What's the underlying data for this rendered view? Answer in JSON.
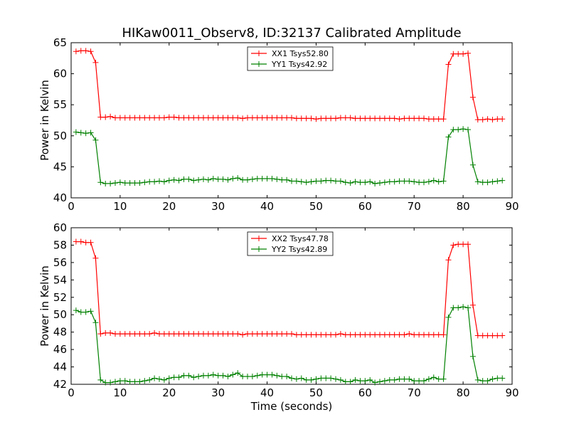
{
  "title": "HIKaw0011_Observ8, ID:32137 Calibrated Amplitude",
  "chart_data": [
    {
      "type": "line",
      "xlabel": "",
      "ylabel": "Power in Kelvin",
      "xlim": [
        0,
        90
      ],
      "ylim": [
        40,
        65
      ],
      "xticks": [
        0,
        10,
        20,
        30,
        40,
        50,
        60,
        70,
        80,
        90
      ],
      "yticks": [
        40,
        45,
        50,
        55,
        60,
        65
      ],
      "grid": false,
      "legend_position": "top-center",
      "series": [
        {
          "name": "XX1 Tsys52.80",
          "color": "#ff0000",
          "x": [
            1,
            2,
            3,
            4,
            5,
            6,
            7,
            8,
            9,
            10,
            11,
            12,
            13,
            14,
            15,
            16,
            17,
            18,
            19,
            20,
            21,
            22,
            23,
            24,
            25,
            26,
            27,
            28,
            29,
            30,
            31,
            32,
            33,
            34,
            35,
            36,
            37,
            38,
            39,
            40,
            41,
            42,
            43,
            44,
            45,
            46,
            47,
            48,
            49,
            50,
            51,
            52,
            53,
            54,
            55,
            56,
            57,
            58,
            59,
            60,
            61,
            62,
            63,
            64,
            65,
            66,
            67,
            68,
            69,
            70,
            71,
            72,
            73,
            74,
            75,
            76,
            77,
            78,
            79,
            80,
            81,
            82,
            83,
            84,
            85,
            86,
            87,
            88
          ],
          "y": [
            63.6,
            63.7,
            63.7,
            63.6,
            61.8,
            53.0,
            53.0,
            53.1,
            52.9,
            52.9,
            52.9,
            52.9,
            52.9,
            52.9,
            52.9,
            52.9,
            52.9,
            52.9,
            52.9,
            53.0,
            53.0,
            52.9,
            52.9,
            52.9,
            52.9,
            52.9,
            52.9,
            52.9,
            52.9,
            52.9,
            52.9,
            52.9,
            52.9,
            52.9,
            52.8,
            52.9,
            52.9,
            52.9,
            52.9,
            52.9,
            52.9,
            52.9,
            52.9,
            52.9,
            52.9,
            52.8,
            52.8,
            52.8,
            52.8,
            52.7,
            52.8,
            52.8,
            52.8,
            52.8,
            52.9,
            52.9,
            52.9,
            52.8,
            52.8,
            52.8,
            52.8,
            52.8,
            52.8,
            52.8,
            52.8,
            52.8,
            52.7,
            52.8,
            52.8,
            52.8,
            52.8,
            52.8,
            52.7,
            52.7,
            52.7,
            52.7,
            61.5,
            63.2,
            63.2,
            63.2,
            63.3,
            56.2,
            52.6,
            52.6,
            52.7,
            52.6,
            52.7,
            52.7
          ]
        },
        {
          "name": "YY1 Tsys42.92",
          "color": "#008000",
          "x": [
            1,
            2,
            3,
            4,
            5,
            6,
            7,
            8,
            9,
            10,
            11,
            12,
            13,
            14,
            15,
            16,
            17,
            18,
            19,
            20,
            21,
            22,
            23,
            24,
            25,
            26,
            27,
            28,
            29,
            30,
            31,
            32,
            33,
            34,
            35,
            36,
            37,
            38,
            39,
            40,
            41,
            42,
            43,
            44,
            45,
            46,
            47,
            48,
            49,
            50,
            51,
            52,
            53,
            54,
            55,
            56,
            57,
            58,
            59,
            60,
            61,
            62,
            63,
            64,
            65,
            66,
            67,
            68,
            69,
            70,
            71,
            72,
            73,
            74,
            75,
            76,
            77,
            78,
            79,
            80,
            81,
            82,
            83,
            84,
            85,
            86,
            87,
            88
          ],
          "y": [
            50.6,
            50.5,
            50.4,
            50.5,
            49.3,
            42.5,
            42.3,
            42.3,
            42.4,
            42.5,
            42.4,
            42.4,
            42.4,
            42.4,
            42.5,
            42.6,
            42.6,
            42.7,
            42.6,
            42.8,
            42.9,
            42.8,
            43.0,
            43.0,
            42.8,
            42.9,
            43.0,
            42.9,
            43.1,
            43.0,
            43.0,
            42.9,
            43.1,
            43.2,
            42.9,
            42.9,
            43.0,
            43.1,
            43.1,
            43.1,
            43.1,
            43.0,
            42.9,
            42.9,
            42.7,
            42.7,
            42.6,
            42.5,
            42.6,
            42.7,
            42.7,
            42.8,
            42.8,
            42.7,
            42.7,
            42.5,
            42.4,
            42.6,
            42.5,
            42.5,
            42.6,
            42.3,
            42.4,
            42.5,
            42.6,
            42.6,
            42.7,
            42.7,
            42.7,
            42.6,
            42.5,
            42.5,
            42.6,
            42.8,
            42.6,
            42.7,
            49.8,
            51.0,
            51.0,
            51.1,
            51.0,
            45.3,
            42.6,
            42.5,
            42.5,
            42.6,
            42.7,
            42.8
          ]
        }
      ]
    },
    {
      "type": "line",
      "xlabel": "Time (seconds)",
      "ylabel": "Power in Kelvin",
      "xlim": [
        0,
        90
      ],
      "ylim": [
        42,
        60
      ],
      "xticks": [
        0,
        10,
        20,
        30,
        40,
        50,
        60,
        70,
        80,
        90
      ],
      "yticks": [
        42,
        44,
        46,
        48,
        50,
        52,
        54,
        56,
        58,
        60
      ],
      "grid": false,
      "legend_position": "top-center",
      "series": [
        {
          "name": "XX2 Tsys47.78",
          "color": "#ff0000",
          "x": [
            1,
            2,
            3,
            4,
            5,
            6,
            7,
            8,
            9,
            10,
            11,
            12,
            13,
            14,
            15,
            16,
            17,
            18,
            19,
            20,
            21,
            22,
            23,
            24,
            25,
            26,
            27,
            28,
            29,
            30,
            31,
            32,
            33,
            34,
            35,
            36,
            37,
            38,
            39,
            40,
            41,
            42,
            43,
            44,
            45,
            46,
            47,
            48,
            49,
            50,
            51,
            52,
            53,
            54,
            55,
            56,
            57,
            58,
            59,
            60,
            61,
            62,
            63,
            64,
            65,
            66,
            67,
            68,
            69,
            70,
            71,
            72,
            73,
            74,
            75,
            76,
            77,
            78,
            79,
            80,
            81,
            82,
            83,
            84,
            85,
            86,
            87,
            88
          ],
          "y": [
            58.4,
            58.4,
            58.3,
            58.3,
            56.5,
            47.8,
            47.9,
            47.9,
            47.8,
            47.8,
            47.8,
            47.8,
            47.8,
            47.8,
            47.8,
            47.8,
            47.9,
            47.8,
            47.8,
            47.8,
            47.8,
            47.8,
            47.8,
            47.8,
            47.8,
            47.8,
            47.8,
            47.8,
            47.8,
            47.8,
            47.8,
            47.8,
            47.8,
            47.8,
            47.7,
            47.8,
            47.8,
            47.8,
            47.8,
            47.8,
            47.8,
            47.8,
            47.8,
            47.8,
            47.8,
            47.7,
            47.7,
            47.7,
            47.7,
            47.7,
            47.7,
            47.7,
            47.7,
            47.7,
            47.8,
            47.7,
            47.7,
            47.7,
            47.7,
            47.7,
            47.7,
            47.7,
            47.7,
            47.7,
            47.7,
            47.7,
            47.7,
            47.7,
            47.8,
            47.7,
            47.7,
            47.7,
            47.7,
            47.7,
            47.7,
            47.7,
            56.3,
            58.0,
            58.1,
            58.1,
            58.1,
            51.1,
            47.6,
            47.6,
            47.6,
            47.6,
            47.6,
            47.6
          ]
        },
        {
          "name": "YY2 Tsys42.89",
          "color": "#008000",
          "x": [
            1,
            2,
            3,
            4,
            5,
            6,
            7,
            8,
            9,
            10,
            11,
            12,
            13,
            14,
            15,
            16,
            17,
            18,
            19,
            20,
            21,
            22,
            23,
            24,
            25,
            26,
            27,
            28,
            29,
            30,
            31,
            32,
            33,
            34,
            35,
            36,
            37,
            38,
            39,
            40,
            41,
            42,
            43,
            44,
            45,
            46,
            47,
            48,
            49,
            50,
            51,
            52,
            53,
            54,
            55,
            56,
            57,
            58,
            59,
            60,
            61,
            62,
            63,
            64,
            65,
            66,
            67,
            68,
            69,
            70,
            71,
            72,
            73,
            74,
            75,
            76,
            77,
            78,
            79,
            80,
            81,
            82,
            83,
            84,
            85,
            86,
            87,
            88
          ],
          "y": [
            50.5,
            50.3,
            50.3,
            50.4,
            49.1,
            42.5,
            42.2,
            42.2,
            42.3,
            42.4,
            42.4,
            42.3,
            42.3,
            42.3,
            42.4,
            42.5,
            42.7,
            42.6,
            42.5,
            42.7,
            42.8,
            42.8,
            43.0,
            43.0,
            42.8,
            42.9,
            43.0,
            43.0,
            43.1,
            43.0,
            43.0,
            42.9,
            43.1,
            43.3,
            42.9,
            42.9,
            42.9,
            43.0,
            43.1,
            43.1,
            43.1,
            43.0,
            42.9,
            42.9,
            42.7,
            42.6,
            42.7,
            42.5,
            42.5,
            42.6,
            42.7,
            42.7,
            42.7,
            42.6,
            42.5,
            42.3,
            42.3,
            42.5,
            42.4,
            42.4,
            42.5,
            42.2,
            42.3,
            42.4,
            42.5,
            42.5,
            42.6,
            42.6,
            42.6,
            42.4,
            42.4,
            42.4,
            42.6,
            42.8,
            42.6,
            42.6,
            49.7,
            50.8,
            50.8,
            50.9,
            50.8,
            45.2,
            42.5,
            42.4,
            42.4,
            42.6,
            42.7,
            42.7
          ]
        }
      ]
    }
  ]
}
